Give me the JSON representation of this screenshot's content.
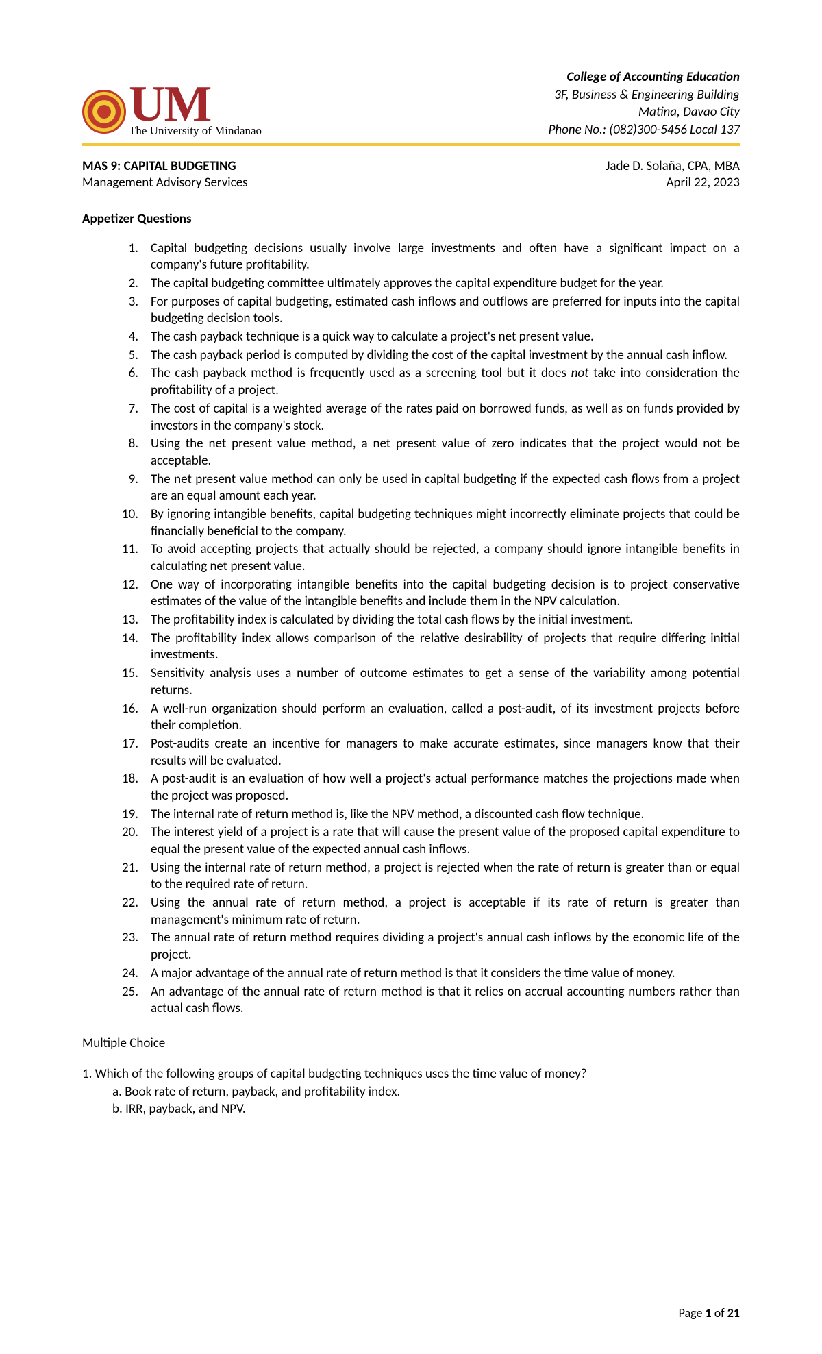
{
  "header": {
    "logo_letters": "UM",
    "tagline": "The University of Mindanao",
    "college_title": "College of Accounting Education",
    "address1": "3F, Business & Engineering Building",
    "address2": "Matina, Davao City",
    "phone": "Phone No.: (082)300-5456 Local 137"
  },
  "course": {
    "code_title": "MAS 9: CAPITAL BUDGETING",
    "subtitle": "Management Advisory Services",
    "author": "Jade D. Solaña, CPA, MBA",
    "date": "April 22, 2023"
  },
  "appetizer_title": "Appetizer Questions",
  "questions": [
    "Capital budgeting decisions usually involve large investments and often have a significant impact on a company's future profitability.",
    "The capital budgeting committee ultimately approves the capital expenditure budget for the year.",
    "For purposes of capital budgeting, estimated cash inflows and outflows are preferred for inputs into the capital budgeting decision tools.",
    "The cash payback technique is a quick way to calculate a project's net present value.",
    "The cash payback period is computed by dividing the cost of the capital investment by the annual cash inflow.",
    "The cash payback method is frequently used as a screening tool but it does <i>not</i> take into consideration the profitability of a project.",
    "The cost of capital is a weighted average of the rates paid on borrowed funds, as well as on funds provided by investors in the company's stock.",
    "Using the net present value method, a net present value of zero indicates that the project would not be acceptable.",
    "The net present value method can only be used in capital budgeting if the expected cash flows from a project are an equal amount each year.",
    "By ignoring intangible benefits, capital budgeting techniques might incorrectly eliminate projects that could be financially beneficial to the company.",
    "To avoid accepting projects that actually should be rejected, a company should ignore intangible benefits in calculating net present value.",
    "One way of incorporating intangible benefits into the capital budgeting decision is to project conservative estimates of the value of the intangible benefits and include them in the NPV calculation.",
    "The profitability index is calculated by dividing the total cash flows by the initial investment.",
    "The profitability index allows comparison of the relative desirability of projects that require differing initial investments.",
    "Sensitivity analysis uses a number of outcome estimates to get a sense of the variability among potential returns.",
    "A well-run organization should perform an evaluation, called a post-audit, of its investment projects before their completion.",
    "Post-audits create an incentive for managers to make accurate estimates, since managers know that their results will be evaluated.",
    "A post-audit is an evaluation of how well a project's actual performance matches the projections made when the project was proposed.",
    "The internal rate of return method is, like the NPV method, a discounted cash flow technique.",
    "The interest yield of a project is a rate that will cause the present value of the proposed capital expenditure to equal the present value of the expected annual cash inflows.",
    "Using the internal rate of return method, a project is rejected when the rate of return is greater than or equal to the required rate of return.",
    "Using the annual rate of return method, a project is acceptable if its rate of return is greater than management's minimum rate of return.",
    "The annual rate of return method requires dividing a project's annual cash inflows by the economic life of the project.",
    "A major advantage of the annual rate of return method is that it considers the time value of money.",
    "An advantage of the annual rate of return method is that it relies on accrual accounting numbers rather than actual cash flows."
  ],
  "mc_title": "Multiple Choice",
  "mc_q1": "1. Which of the following groups of capital budgeting techniques uses the time value of money?",
  "mc_q1_a": "a. Book rate of return, payback, and profitability index.",
  "mc_q1_b": "b. IRR, payback, and NPV.",
  "footer": {
    "prefix": "Page ",
    "current": "1",
    "of": " of ",
    "total": "21"
  },
  "colors": {
    "accent_red": "#a3282c",
    "accent_gold": "#f2c838",
    "text": "#000000",
    "background": "#ffffff"
  }
}
